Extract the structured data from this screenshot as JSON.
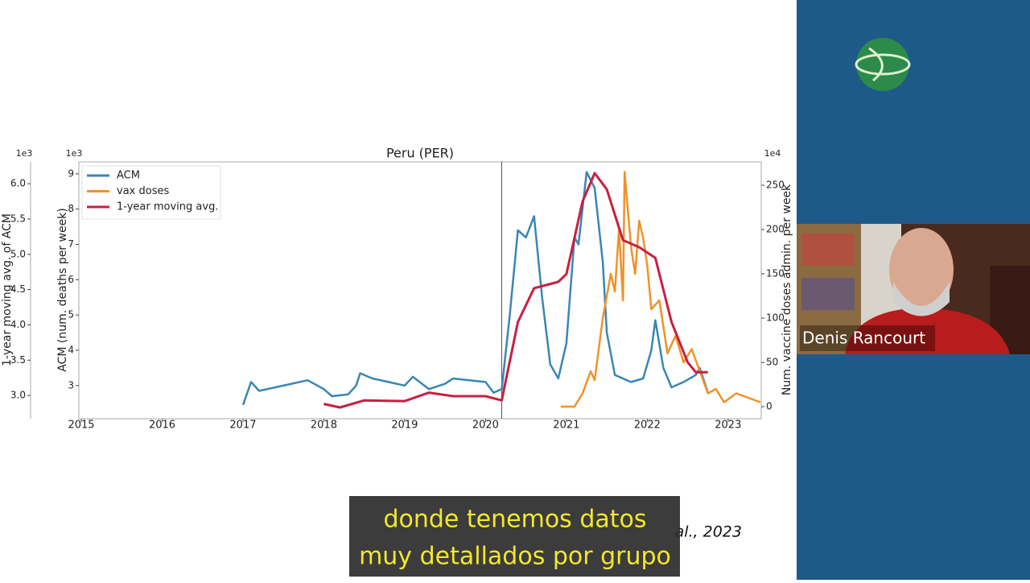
{
  "chart_data": {
    "type": "line",
    "title": "Peru (PER)",
    "ylabel": "ACM (num. deaths per week)",
    "y2label": "Num. vaccine doses admin. per week",
    "y3label": "1-year moving avg. of ACM",
    "yscale_label": "1e3",
    "y2scale_label": "1e4",
    "y3scale_label": "1e3",
    "xlim": [
      2014.97,
      2023.41
    ],
    "xticks": [
      2015,
      2016,
      2017,
      2018,
      2019,
      2020,
      2021,
      2022,
      2023
    ],
    "ylim": [
      2.06,
      9.34
    ],
    "yticks": [
      3,
      4,
      5,
      6,
      7,
      8,
      9
    ],
    "y2lim": [
      -13.6,
      276.4
    ],
    "y2ticks": [
      0,
      50,
      100,
      150,
      200,
      250
    ],
    "y3lim": [
      2.67,
      6.31
    ],
    "y3ticks": [
      {
        "value": 3.0,
        "label": "3.0"
      },
      {
        "value": 3.5,
        "label": "3.5"
      },
      {
        "value": 4.0,
        "label": "4.0"
      },
      {
        "value": 4.5,
        "label": "4.5"
      },
      {
        "value": 5.0,
        "label": "5.0"
      },
      {
        "value": 5.5,
        "label": "5.5"
      },
      {
        "value": 6.0,
        "label": "6.0"
      }
    ],
    "vline_x": 2020.2,
    "legend": "upper left",
    "series": [
      {
        "name": "ACM",
        "color": "#3a86b4",
        "axis": "y",
        "x": [
          2017.0,
          2017.1,
          2017.2,
          2017.4,
          2017.6,
          2017.8,
          2018.0,
          2018.1,
          2018.3,
          2018.4,
          2018.45,
          2018.6,
          2018.8,
          2019.0,
          2019.1,
          2019.3,
          2019.5,
          2019.6,
          2019.8,
          2020.0,
          2020.1,
          2020.2,
          2020.3,
          2020.4,
          2020.5,
          2020.6,
          2020.7,
          2020.8,
          2020.9,
          2021.0,
          2021.1,
          2021.15,
          2021.25,
          2021.35,
          2021.45,
          2021.5,
          2021.6,
          2021.8,
          2021.95,
          2022.05,
          2022.1,
          2022.2,
          2022.3,
          2022.45,
          2022.6,
          2022.65,
          2022.75
        ],
        "values": [
          2.45,
          3.1,
          2.85,
          2.95,
          3.05,
          3.15,
          2.9,
          2.7,
          2.75,
          3.0,
          3.35,
          3.2,
          3.1,
          3.0,
          3.25,
          2.9,
          3.05,
          3.2,
          3.15,
          3.1,
          2.8,
          2.9,
          5.0,
          7.4,
          7.2,
          7.8,
          5.5,
          3.6,
          3.2,
          4.2,
          7.2,
          7.0,
          9.05,
          8.6,
          6.5,
          4.5,
          3.3,
          3.1,
          3.2,
          4.0,
          4.85,
          3.5,
          2.95,
          3.1,
          3.3,
          3.5,
          2.8
        ]
      },
      {
        "name": "vax doses",
        "color": "#f0922a",
        "axis": "y2",
        "x": [
          2020.93,
          2021.1,
          2021.2,
          2021.3,
          2021.35,
          2021.45,
          2021.55,
          2021.6,
          2021.65,
          2021.7,
          2021.72,
          2021.8,
          2021.85,
          2021.9,
          2021.95,
          2022.0,
          2022.05,
          2022.15,
          2022.25,
          2022.35,
          2022.45,
          2022.55,
          2022.65,
          2022.75,
          2022.85,
          2022.95,
          2023.1,
          2023.25,
          2023.4
        ],
        "values": [
          0,
          0,
          15,
          40,
          30,
          100,
          150,
          130,
          200,
          120,
          265,
          180,
          150,
          210,
          190,
          160,
          110,
          120,
          60,
          80,
          50,
          65,
          40,
          15,
          20,
          5,
          15,
          10,
          5
        ]
      },
      {
        "name": "1-year moving avg.",
        "color": "#c8203f",
        "axis": "y3",
        "x": [
          2018.0,
          2018.2,
          2018.5,
          2019.0,
          2019.3,
          2019.6,
          2020.0,
          2020.2,
          2020.4,
          2020.6,
          2020.9,
          2021.0,
          2021.2,
          2021.35,
          2021.5,
          2021.7,
          2021.9,
          2022.1,
          2022.3,
          2022.5,
          2022.6,
          2022.75
        ],
        "values": [
          2.88,
          2.83,
          2.93,
          2.92,
          3.04,
          2.99,
          2.99,
          2.93,
          4.04,
          4.52,
          4.61,
          4.72,
          5.75,
          6.15,
          5.92,
          5.2,
          5.1,
          4.95,
          4.04,
          3.47,
          3.33,
          3.33
        ]
      }
    ],
    "citation_fragment": "al., 2023"
  },
  "video": {
    "speaker_name": "Denis Rancourt",
    "subtitle_lines": [
      "donde tenemos datos",
      "muy detallados por grupo"
    ]
  }
}
